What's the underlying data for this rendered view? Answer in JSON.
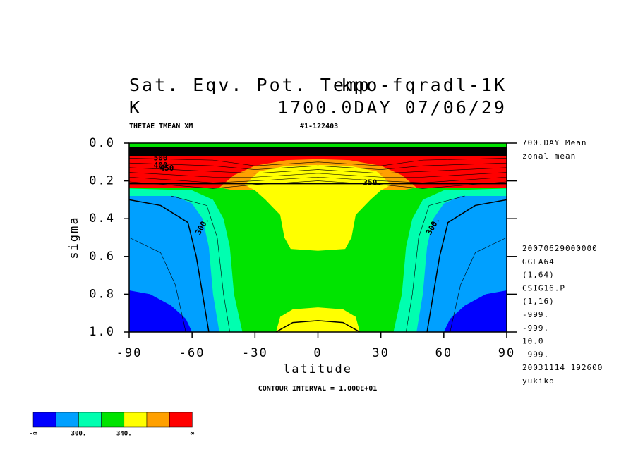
{
  "chart_data": {
    "type": "contour",
    "title": "Sat. Eqv. Pot. Temp",
    "title_right": "kpo-fqradl-1K",
    "subtitle": "K",
    "subtitle_right": "1700.0DAY 07/06/29",
    "variable_label": "THETAE TMEAN XM",
    "run_label": "#1-122403",
    "x_label": "latitude",
    "y_label": "sigma",
    "xlim": [
      -90,
      90
    ],
    "xticks": [
      -90,
      -60,
      -30,
      0,
      30,
      60,
      90
    ],
    "ylim": [
      0,
      1
    ],
    "yticks": [
      {
        "value": 0,
        "label": "0.0"
      },
      0.2,
      0.4,
      0.6,
      0.8,
      {
        "value": 1,
        "label": "1.0"
      }
    ],
    "y_reversed": true,
    "contour_interval_text": "CONTOUR INTERVAL = 1.000E+01",
    "contour_labels": [
      "300.",
      "300.",
      "350.",
      "400",
      "450",
      "500"
    ],
    "side_texts_top": [
      "700.DAY Mean",
      "zonal mean"
    ],
    "side_texts": [
      "20070629000000",
      "GGLA64",
      "(1,64)",
      "CSIG16.P",
      "(1,16)",
      "-999.",
      "-999.",
      "10.0",
      "-999.",
      "20031114 192600",
      "yukiko"
    ],
    "colorbar": {
      "colors": [
        "#0000ff",
        "#00a0ff",
        "#00ffb0",
        "#00e400",
        "#ffff00",
        "#ffa000",
        "#ff0000"
      ],
      "labels": [
        "-∞",
        null,
        "300.",
        null,
        "340.",
        null,
        null,
        "∞"
      ]
    }
  }
}
